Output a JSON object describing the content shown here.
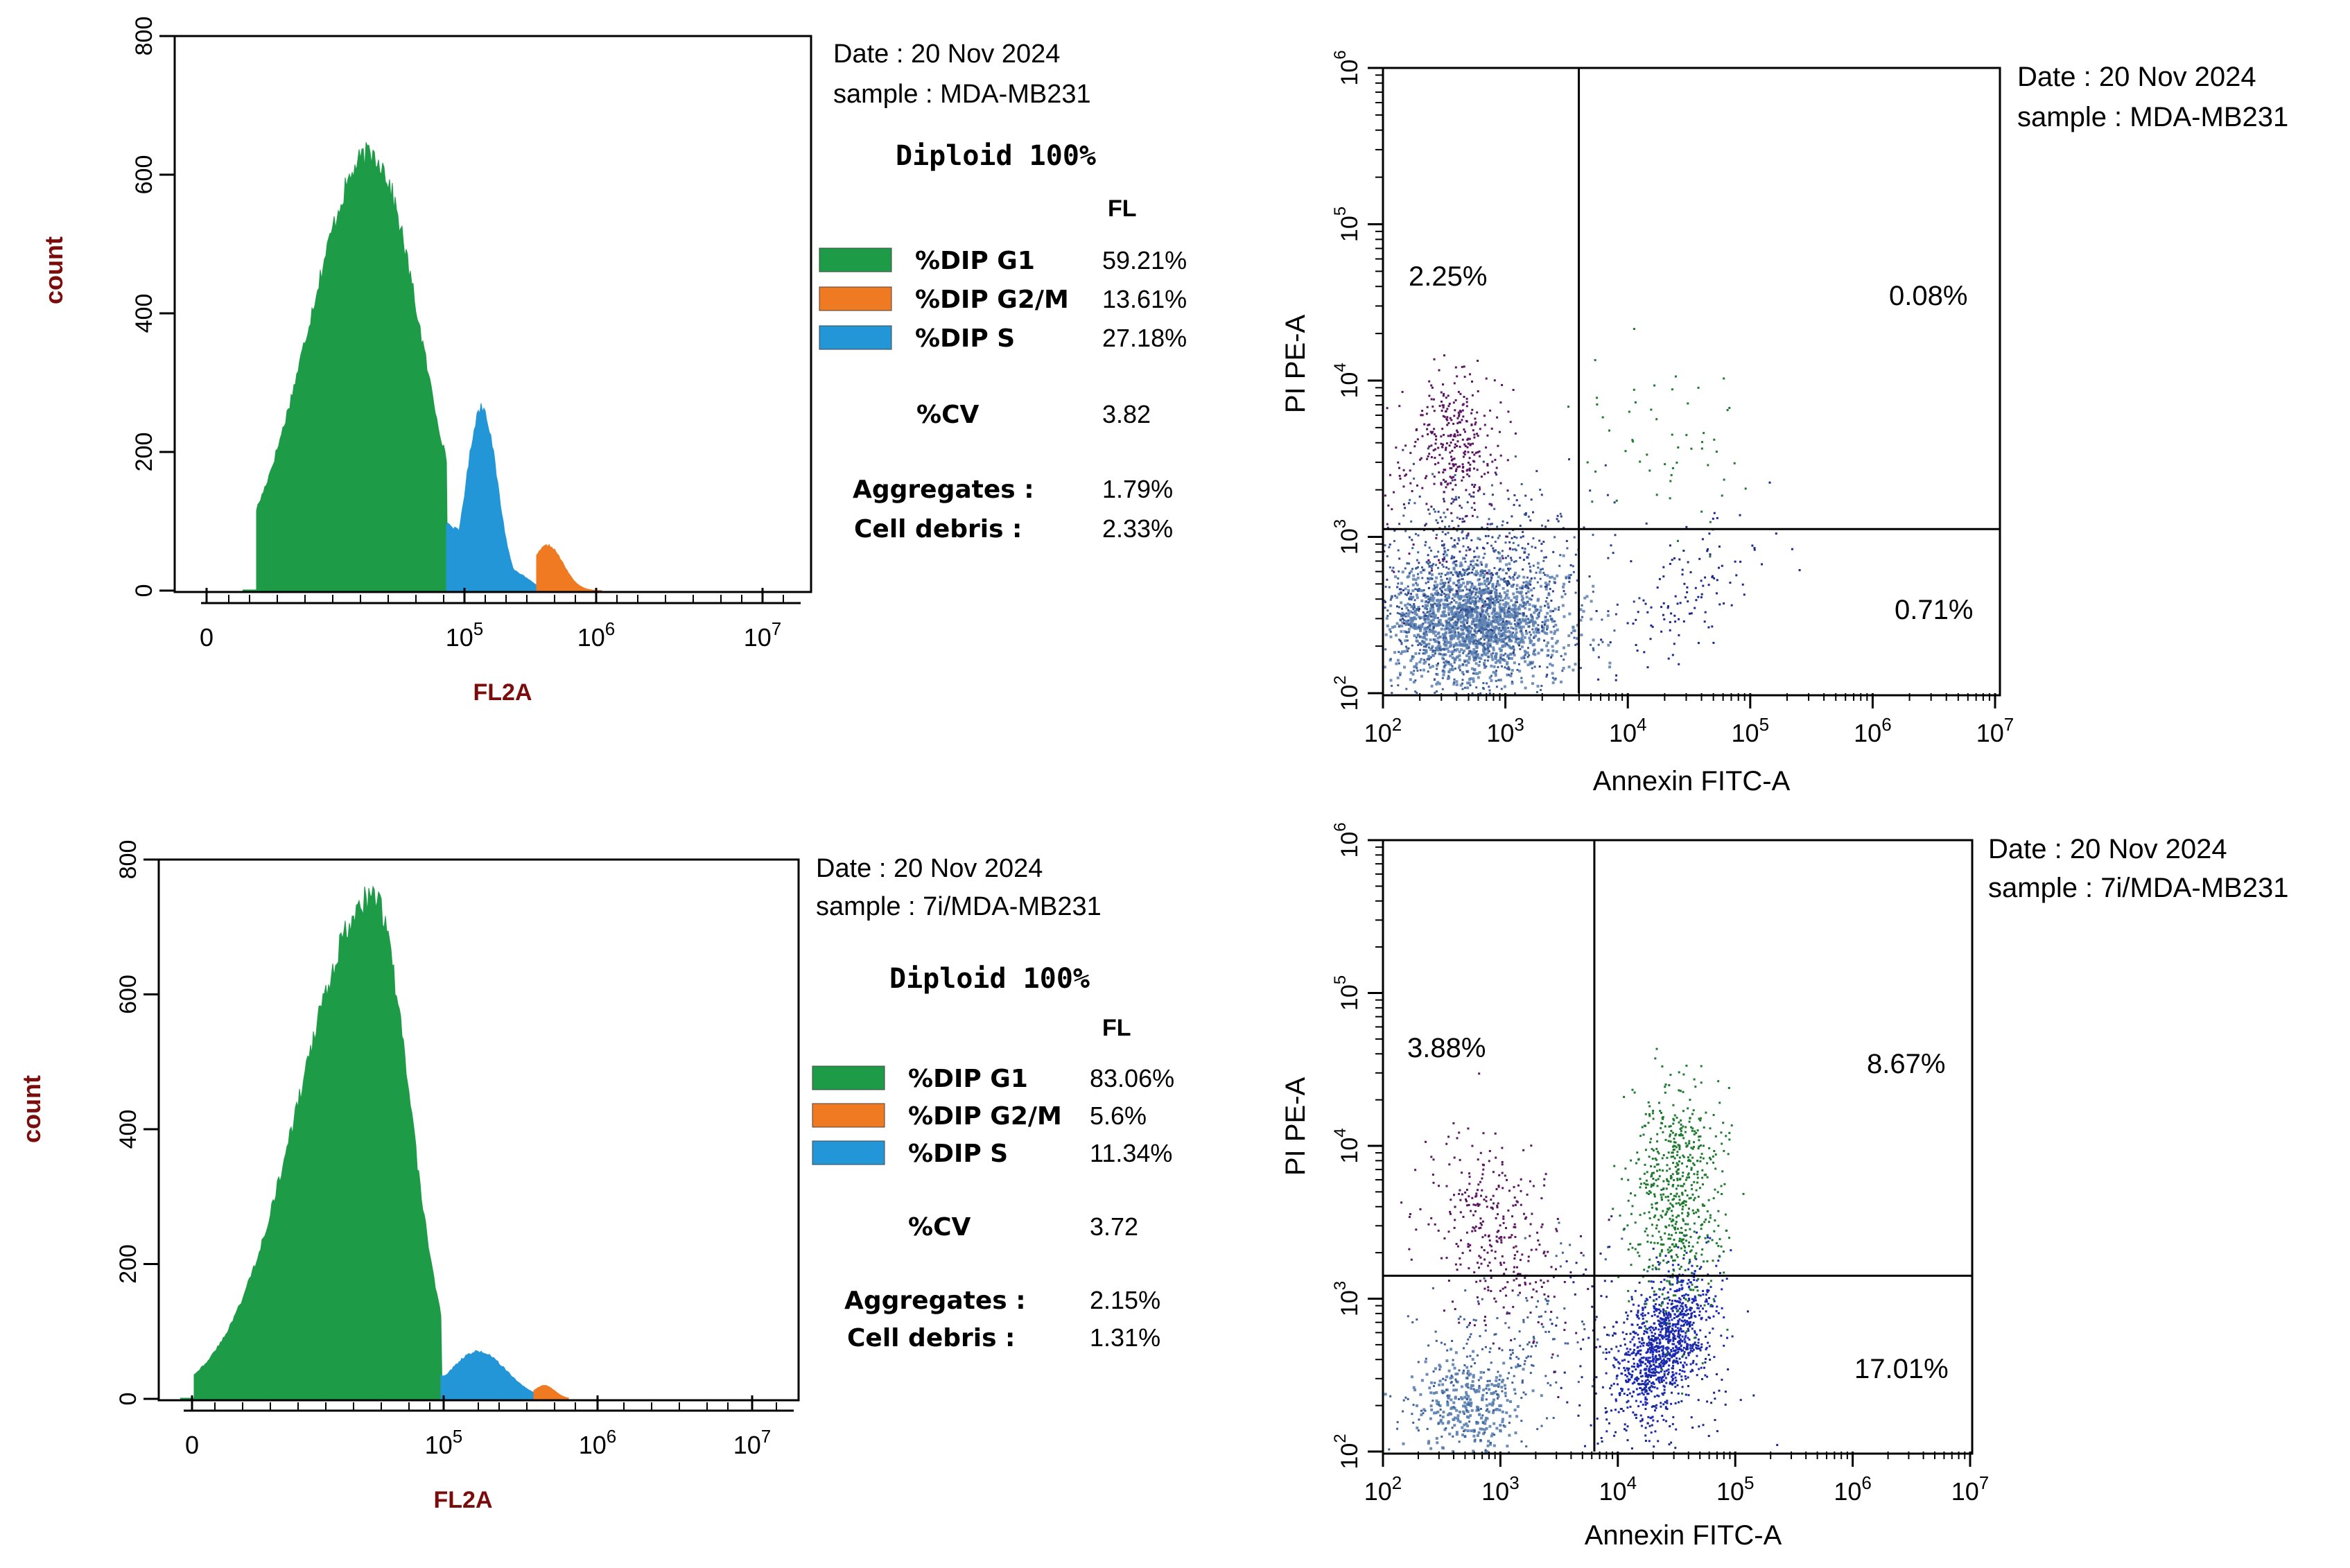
{
  "chart_data": [
    {
      "type": "area",
      "id": "hist-control",
      "xlabel": "FL2A",
      "ylabel": "count",
      "ylim": [
        0,
        800
      ],
      "y_ticks": [
        "0",
        "200",
        "400",
        "600",
        "800"
      ],
      "x_ticks": [
        {
          "base": "0",
          "exp": ""
        },
        {
          "base": "10",
          "exp": "5"
        },
        {
          "base": "10",
          "exp": "6"
        },
        {
          "base": "10",
          "exp": "7"
        }
      ],
      "series": [
        {
          "name": "%DIP G1",
          "color": "#1e9b47",
          "peak": 630
        },
        {
          "name": "%DIP S",
          "color": "#2396d8",
          "peak": 265
        },
        {
          "name": "%DIP G2/M",
          "color": "#f07a22",
          "peak": 65
        }
      ]
    },
    {
      "type": "table",
      "id": "stats-control",
      "date": "Date : 20 Nov 2024",
      "sample": "sample : MDA-MB231",
      "title": "Diploid 100%",
      "col_header": "FL",
      "legend": [
        {
          "label": "%DIP G1",
          "value": "59.21%",
          "color": "#1e9b47"
        },
        {
          "label": "%DIP G2/M",
          "value": "13.61%",
          "color": "#f07a22"
        },
        {
          "label": "%DIP S",
          "value": "27.18%",
          "color": "#2396d8"
        }
      ],
      "stats": [
        {
          "label": "%CV",
          "value": "3.82"
        },
        {
          "label": "Aggregates :",
          "value": "1.79%"
        },
        {
          "label": "Cell debris :",
          "value": "2.33%"
        }
      ]
    },
    {
      "type": "scatter",
      "id": "annexin-control",
      "xlabel": "Annexin FITC-A",
      "ylabel": "PI PE-A",
      "x_ticks": [
        {
          "base": "10",
          "exp": "2"
        },
        {
          "base": "10",
          "exp": "3"
        },
        {
          "base": "10",
          "exp": "4"
        },
        {
          "base": "10",
          "exp": "5"
        },
        {
          "base": "10",
          "exp": "6"
        },
        {
          "base": "10",
          "exp": "7"
        }
      ],
      "y_ticks": [
        {
          "base": "10",
          "exp": "2"
        },
        {
          "base": "10",
          "exp": "3"
        },
        {
          "base": "10",
          "exp": "4"
        },
        {
          "base": "10",
          "exp": "5"
        },
        {
          "base": "10",
          "exp": "6"
        }
      ],
      "gate_x_log": 3.6,
      "gate_y_log": 3.05,
      "quadrants": {
        "upper_left": "2.25%",
        "upper_right": "0.08%",
        "lower_right": "0.71%"
      },
      "date": "Date : 20 Nov 2024",
      "sample": "sample : MDA-MB231"
    },
    {
      "type": "area",
      "id": "hist-treated",
      "xlabel": "FL2A",
      "ylabel": "count",
      "ylim": [
        0,
        800
      ],
      "y_ticks": [
        "0",
        "200",
        "400",
        "600",
        "800"
      ],
      "x_ticks": [
        {
          "base": "0",
          "exp": ""
        },
        {
          "base": "10",
          "exp": "5"
        },
        {
          "base": "10",
          "exp": "6"
        },
        {
          "base": "10",
          "exp": "7"
        }
      ],
      "series": [
        {
          "name": "%DIP G1",
          "color": "#1e9b47",
          "peak": 745
        },
        {
          "name": "%DIP S",
          "color": "#2396d8",
          "peak": 70
        },
        {
          "name": "%DIP G2/M",
          "color": "#f07a22",
          "peak": 20
        }
      ]
    },
    {
      "type": "table",
      "id": "stats-treated",
      "date": "Date : 20 Nov 2024",
      "sample": "sample :  7i/MDA-MB231",
      "title": "Diploid 100%",
      "col_header": "FL",
      "legend": [
        {
          "label": "%DIP G1",
          "value": "83.06%",
          "color": "#1e9b47"
        },
        {
          "label": "%DIP G2/M",
          "value": "5.6%",
          "color": "#f07a22"
        },
        {
          "label": "%DIP S",
          "value": "11.34%",
          "color": "#2396d8"
        }
      ],
      "stats": [
        {
          "label": "%CV",
          "value": "3.72"
        },
        {
          "label": "Aggregates :",
          "value": "2.15%"
        },
        {
          "label": "Cell debris :",
          "value": "1.31%"
        }
      ]
    },
    {
      "type": "scatter",
      "id": "annexin-treated",
      "xlabel": "Annexin FITC-A",
      "ylabel": "PI PE-A",
      "x_ticks": [
        {
          "base": "10",
          "exp": "2"
        },
        {
          "base": "10",
          "exp": "3"
        },
        {
          "base": "10",
          "exp": "4"
        },
        {
          "base": "10",
          "exp": "5"
        },
        {
          "base": "10",
          "exp": "6"
        },
        {
          "base": "10",
          "exp": "7"
        }
      ],
      "y_ticks": [
        {
          "base": "10",
          "exp": "2"
        },
        {
          "base": "10",
          "exp": "3"
        },
        {
          "base": "10",
          "exp": "4"
        },
        {
          "base": "10",
          "exp": "5"
        },
        {
          "base": "10",
          "exp": "6"
        }
      ],
      "gate_x_log": 3.8,
      "gate_y_log": 3.15,
      "quadrants": {
        "upper_left": "3.88%",
        "upper_right": "8.67%",
        "lower_right": "17.01%"
      },
      "date": "Date : 20 Nov 2024",
      "sample": "sample :  7i/MDA-MB231"
    }
  ],
  "colors": {
    "axis": "#000000",
    "label_red": "#7a0c0c",
    "dot_purple": "#5a1560",
    "dot_green": "#1e7a2e",
    "dot_navy": "#1a2a8c",
    "dot_steel": "#5a7fb0"
  }
}
